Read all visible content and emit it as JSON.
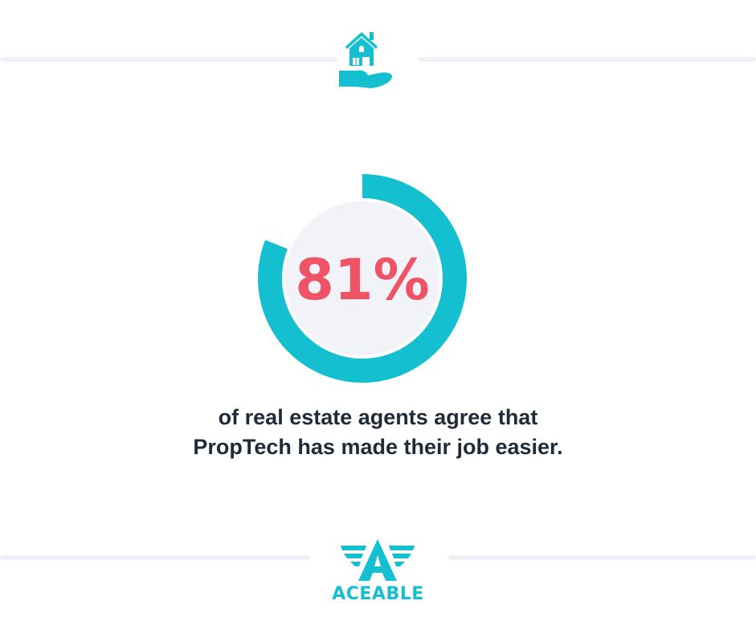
{
  "chart_data": {
    "type": "pie",
    "variant": "donut",
    "values": [
      81,
      19
    ],
    "label": "81%",
    "colors": {
      "filled": "#14bfcf",
      "center": "#f2f3f8",
      "label": "#ef5466"
    }
  },
  "caption": {
    "line1": "of real estate agents agree that",
    "line2": "PropTech has made their job easier."
  },
  "header_icon": "house-in-hand-icon",
  "logo": {
    "text": "ACEABLE",
    "color": "#14bfcf"
  }
}
